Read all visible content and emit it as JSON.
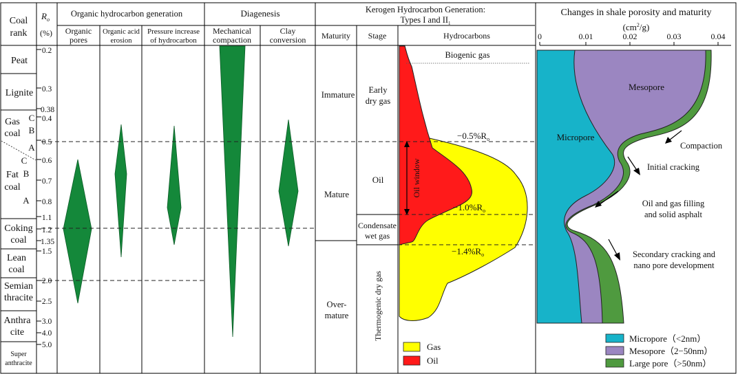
{
  "headers": {
    "coal_rank": [
      "Coal",
      "rank"
    ],
    "ro_symbol": "R",
    "ro_sub": "o",
    "ro_unit": "(%)",
    "organic_group": "Organic hydrocarbon generation",
    "organic_pores": [
      "Organic",
      "pores"
    ],
    "acid_erosion": [
      "Organic acid",
      "erosion"
    ],
    "pressure_increase": [
      "Pressure increase",
      "of hydrocarbon"
    ],
    "diagenesis_group": "Diagenesis",
    "mech_compaction": [
      "Mechanical",
      "compaction"
    ],
    "clay_conversion": [
      "Clay",
      "conversion"
    ],
    "kerogen_group": [
      "Kerogen Hydrocarbon Generation:",
      "Types I and II"
    ],
    "kerogen_sub": "1",
    "maturity": "Maturity",
    "stage": "Stage",
    "hydrocarbons": "Hydrocarbons",
    "porosity_group": "Changes in shale porosity and maturity",
    "porosity_unit_a": "(cm",
    "porosity_unit_sup": "2",
    "porosity_unit_b": "/g)"
  },
  "coal_ranks": [
    {
      "lines": [
        "Peat"
      ]
    },
    {
      "lines": [
        "Lignite"
      ]
    },
    {
      "lines": [
        "Gas",
        "coal"
      ]
    },
    {
      "lines": [
        "Fat",
        "coal"
      ]
    },
    {
      "lines": [
        "Coking",
        "coal"
      ]
    },
    {
      "lines": [
        "Lean",
        "coal"
      ]
    },
    {
      "lines": [
        "Semian",
        "thracite"
      ]
    },
    {
      "lines": [
        "Anthra",
        "cite"
      ]
    },
    {
      "lines": [
        "Super",
        "anthracite"
      ]
    }
  ],
  "sub_ranks": [
    "C",
    "B",
    "A",
    "C",
    "B",
    "A"
  ],
  "ro_ticks": [
    "0.2",
    "0.3",
    "0.38",
    "0.4",
    "0.5",
    "0.6",
    "0.7",
    "0.8",
    "1.1",
    "1.2",
    "1.35",
    "1.5",
    "2.0",
    "2.5",
    "3.0",
    "4.0",
    "5.0"
  ],
  "maturity_stages": [
    "Immature",
    "Mature",
    "Over-",
    "mature"
  ],
  "gen_stages": {
    "early": [
      "Early",
      "dry gas"
    ],
    "oil": "Oil",
    "condensate": [
      "Condensate",
      "wet gas"
    ],
    "thermogenic": "Thermogenic dry gas"
  },
  "hydrocarbon_labels": {
    "biogenic": "Biogenic gas",
    "oil_window": "Oil window",
    "r05": "−0.5%R",
    "r10": "−1.0%R",
    "r14": "−1.4%R",
    "ro_sub": "o"
  },
  "hc_legend": [
    {
      "label": "Gas",
      "color": "#ffff00"
    },
    {
      "label": "Oil",
      "color": "#ff1a1a"
    }
  ],
  "porosity_axis_ticks": [
    "0",
    "0.01",
    "0.02",
    "0.03",
    "0.04"
  ],
  "porosity_labels": {
    "mesopore": "Mesopore",
    "micropore": "Micropore",
    "compaction": "Compaction",
    "initial_cracking": "Initial cracking",
    "filling": [
      "Oil and gas filling",
      "and solid asphalt"
    ],
    "secondary": [
      "Secondary cracking and",
      "nano pore development"
    ]
  },
  "pore_legend": [
    {
      "label": "Micropore（<2nm）",
      "color": "#17b3c9"
    },
    {
      "label": "Mesopore（2−50nm）",
      "color": "#9b86c1"
    },
    {
      "label": "Large pore（>50nm）",
      "color": "#4f9a3f"
    }
  ],
  "colors": {
    "diamond_green": "#14883a",
    "gas_yellow": "#ffff00",
    "oil_red": "#ff1a1a",
    "micropore": "#17b3c9",
    "mesopore": "#9b86c1",
    "largepore": "#4f9a3f"
  }
}
